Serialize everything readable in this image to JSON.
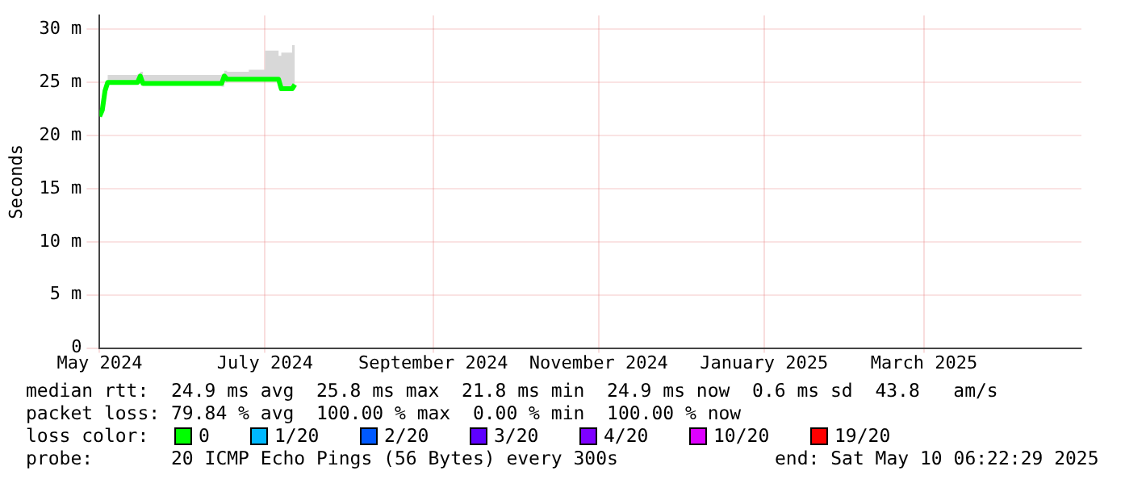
{
  "chart_data": {
    "type": "line",
    "ylabel": "Seconds",
    "x": [
      "2024-05-01",
      "2024-05-02",
      "2024-05-03",
      "2024-05-04",
      "2024-05-15",
      "2024-05-16",
      "2024-05-17",
      "2024-06-15",
      "2024-06-16",
      "2024-06-17",
      "2024-06-25",
      "2024-07-01",
      "2024-07-06",
      "2024-07-07",
      "2024-07-11",
      "2024-07-12"
    ],
    "series": [
      {
        "name": "0",
        "color": "#00ff00",
        "values": [
          21.8,
          22.4,
          24.2,
          25.0,
          25.0,
          25.6,
          24.9,
          24.9,
          25.6,
          25.3,
          25.3,
          25.3,
          25.3,
          24.4,
          24.4,
          24.8
        ],
        "lower": [
          21.8,
          22.4,
          24.2,
          24.9,
          24.9,
          25.0,
          24.8,
          24.6,
          25.0,
          25.1,
          25.1,
          25.1,
          25.1,
          24.3,
          24.3,
          24.7
        ],
        "upper": [
          21.8,
          22.4,
          24.2,
          25.7,
          25.8,
          26.0,
          25.7,
          25.8,
          26.1,
          26.0,
          26.2,
          28.0,
          27.5,
          27.8,
          28.5,
          25.5
        ]
      },
      {
        "name": "1/20",
        "color": "#00b8ff",
        "values": [
          null,
          null,
          null,
          null,
          null,
          null,
          null,
          null,
          null,
          null,
          null,
          null,
          null,
          null,
          null,
          null
        ]
      },
      {
        "name": "2/20",
        "color": "#0059ff",
        "values": [
          null,
          null,
          null,
          null,
          null,
          null,
          null,
          null,
          null,
          null,
          null,
          null,
          null,
          null,
          null,
          null
        ]
      },
      {
        "name": "3/20",
        "color": "#5e00ff",
        "values": [
          null,
          null,
          null,
          null,
          null,
          null,
          null,
          null,
          null,
          null,
          null,
          null,
          null,
          null,
          null,
          null
        ]
      },
      {
        "name": "4/20",
        "color": "#7e00ff",
        "values": [
          null,
          null,
          null,
          null,
          null,
          null,
          null,
          null,
          null,
          null,
          null,
          null,
          null,
          null,
          null,
          null
        ]
      },
      {
        "name": "10/20",
        "color": "#dd00ff",
        "values": [
          null,
          null,
          null,
          null,
          null,
          null,
          null,
          null,
          null,
          null,
          null,
          null,
          null,
          null,
          null,
          null
        ]
      },
      {
        "name": "19/20",
        "color": "#ff0000",
        "values": [
          null,
          null,
          null,
          null,
          null,
          null,
          null,
          null,
          null,
          null,
          null,
          null,
          null,
          null,
          null,
          null
        ]
      }
    ],
    "xlim": [
      "2024-05-01",
      "2025-04-28"
    ],
    "xticks": [
      {
        "value": "2024-05-01",
        "label": "May 2024"
      },
      {
        "value": "2024-07-01",
        "label": "July 2024"
      },
      {
        "value": "2024-09-01",
        "label": "September 2024"
      },
      {
        "value": "2024-11-01",
        "label": "November 2024"
      },
      {
        "value": "2025-01-01",
        "label": "January 2025"
      },
      {
        "value": "2025-03-01",
        "label": "March 2025"
      }
    ],
    "ylim": [
      0,
      31.3
    ],
    "yticks": [
      0,
      {
        "value": 5,
        "label": "5 m"
      },
      {
        "value": 10,
        "label": "10 m"
      },
      {
        "value": 15,
        "label": "15 m"
      },
      {
        "value": 20,
        "label": "20 m"
      },
      {
        "value": 25,
        "label": "25 m"
      },
      {
        "value": 30,
        "label": "30 m"
      }
    ],
    "grid": true,
    "line_style": "solid",
    "marker": "none",
    "annotations": [
      "median rtt:  24.9 ms avg  25.8 ms max  21.8 ms min  24.9 ms now  0.6 ms sd  43.8   am/s",
      "packet loss: 79.84 % avg  100.00 % max  0.00 % min  100.00 % now",
      "loss color:",
      "probe:       20 ICMP Echo Pings (56 Bytes) every 300s",
      "end: Sat May 10 06:22:29 2025"
    ],
    "legend": "bottom"
  }
}
